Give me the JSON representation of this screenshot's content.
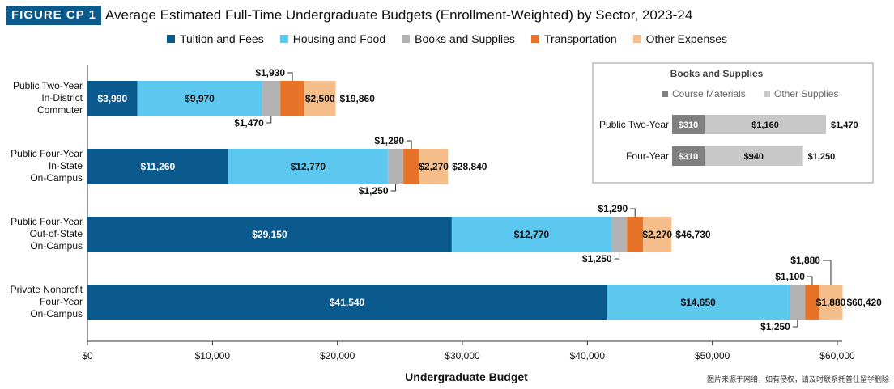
{
  "header": {
    "badge": "FIGURE CP 1",
    "title": "Average Estimated Full-Time Undergraduate Budgets (Enrollment-Weighted) by Sector, 2023-24"
  },
  "colors": {
    "tuition": "#0a5a8e",
    "housing": "#5cc8f0",
    "books": "#b3b3b3",
    "transport": "#e67327",
    "other": "#f5bd8a",
    "course_materials": "#808080",
    "other_supplies": "#c8c8c8"
  },
  "chart_data": [
    {
      "type": "bar",
      "orientation": "horizontal",
      "stacked": true,
      "categories": [
        [
          "Public Two-Year",
          "In-District",
          "Commuter"
        ],
        [
          "Public Four-Year",
          "In-State",
          "On-Campus"
        ],
        [
          "Public Four-Year",
          "Out-of-State",
          "On-Campus"
        ],
        [
          "Private Nonprofit",
          "Four-Year",
          "On-Campus"
        ]
      ],
      "series": [
        {
          "name": "Tuition and Fees",
          "values": [
            3990,
            11260,
            29150,
            41540
          ],
          "labels": [
            "$3,990",
            "$11,260",
            "$29,150",
            "$41,540"
          ]
        },
        {
          "name": "Housing and Food",
          "values": [
            9970,
            12770,
            12770,
            14650
          ],
          "labels": [
            "$9,970",
            "$12,770",
            "$12,770",
            "$14,650"
          ]
        },
        {
          "name": "Books and Supplies",
          "values": [
            1470,
            1250,
            1250,
            1250
          ],
          "labels": [
            "$1,470",
            "$1,250",
            "$1,250",
            "$1,250"
          ]
        },
        {
          "name": "Transportation",
          "values": [
            1930,
            1290,
            1290,
            1100
          ],
          "labels": [
            "$1,930",
            "$1,290",
            "$1,290",
            "$1,100"
          ]
        },
        {
          "name": "Other Expenses",
          "values": [
            2500,
            2270,
            2270,
            1880
          ],
          "labels": [
            "$2,500",
            "$2,270",
            "$2,270",
            "$1,880"
          ]
        }
      ],
      "totals": [
        "$19,860",
        "$28,840",
        "$46,730",
        "$60,420"
      ],
      "xlabel": "Undergraduate Budget",
      "xlim": [
        0,
        60000
      ],
      "xticks": [
        0,
        10000,
        20000,
        30000,
        40000,
        50000,
        60000
      ],
      "xtick_labels": [
        "$0",
        "$10,000",
        "$20,000",
        "$30,000",
        "$40,000",
        "$50,000",
        "$60,000"
      ],
      "grid": false,
      "legend": "top"
    },
    {
      "type": "bar",
      "orientation": "horizontal",
      "stacked": true,
      "title": "Books and Supplies",
      "categories": [
        "Public Two-Year",
        "Four-Year"
      ],
      "series": [
        {
          "name": "Course Materials",
          "values": [
            310,
            310
          ],
          "labels": [
            "$310",
            "$310"
          ]
        },
        {
          "name": "Other Supplies",
          "values": [
            1160,
            940
          ],
          "labels": [
            "$1,160",
            "$940"
          ]
        }
      ],
      "totals": [
        "$1,470",
        "$1,250"
      ],
      "legend": "top"
    }
  ],
  "footnote": "图片来源于网络，如有侵权，请及时联系托普仕留学删除"
}
